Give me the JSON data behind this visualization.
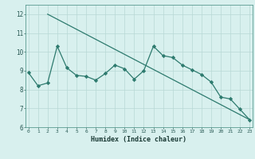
{
  "line1_x": [
    2,
    23
  ],
  "line1_y": [
    12.0,
    6.4
  ],
  "line2_x": [
    0,
    1,
    2,
    3,
    4,
    5,
    6,
    7,
    8,
    9,
    10,
    11,
    12,
    13,
    14,
    15,
    16,
    17,
    18,
    19,
    20,
    21,
    22,
    23
  ],
  "line2_y": [
    8.9,
    8.2,
    8.35,
    10.3,
    9.15,
    8.75,
    8.7,
    8.5,
    8.85,
    9.3,
    9.1,
    8.55,
    9.0,
    10.3,
    9.8,
    9.7,
    9.3,
    9.05,
    8.8,
    8.4,
    7.6,
    7.5,
    6.95,
    6.4
  ],
  "color": "#2d7a6e",
  "bg_color": "#d8f0ee",
  "grid_color": "#b8d8d5",
  "xlabel": "Humidex (Indice chaleur)",
  "ylim": [
    6.0,
    12.5
  ],
  "xlim": [
    -0.3,
    23.3
  ],
  "yticks": [
    6,
    7,
    8,
    9,
    10,
    11,
    12
  ],
  "xticks": [
    0,
    1,
    2,
    3,
    4,
    5,
    6,
    7,
    8,
    9,
    10,
    11,
    12,
    13,
    14,
    15,
    16,
    17,
    18,
    19,
    20,
    21,
    22,
    23
  ],
  "xlabel_fontsize": 6.0,
  "ytick_fontsize": 5.5,
  "xtick_fontsize": 4.5
}
